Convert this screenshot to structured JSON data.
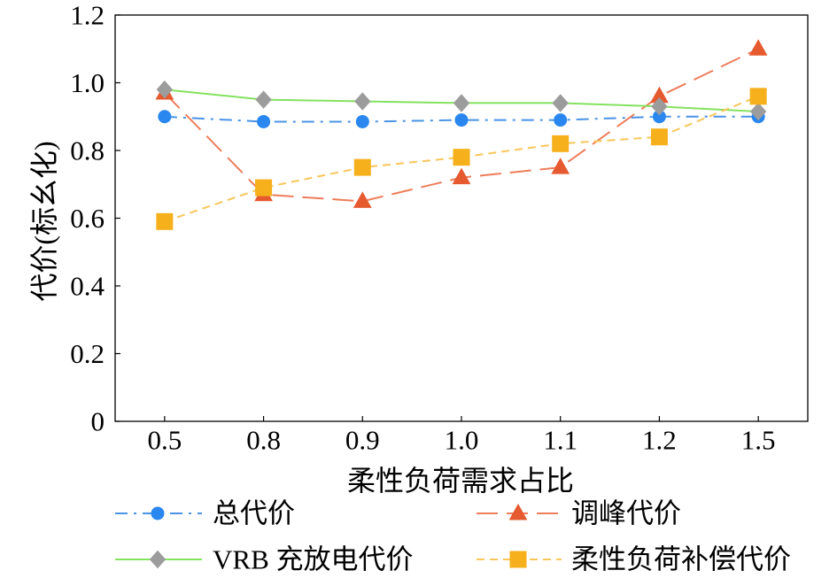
{
  "chart_data": {
    "type": "line",
    "categories": [
      "0.5",
      "0.8",
      "0.9",
      "1.0",
      "1.1",
      "1.2",
      "1.5"
    ],
    "xlabel": "柔性负荷需求占比",
    "ylabel": "代价(标幺化)",
    "ylim": [
      0,
      1.2
    ],
    "ytick_labels": [
      "0",
      "0.2",
      "0.4",
      "0.6",
      "0.8",
      "1.0",
      "1.2"
    ],
    "grid": false,
    "legend": "bottom",
    "series": [
      {
        "name": "总代价",
        "values": [
          0.9,
          0.885,
          0.885,
          0.89,
          0.89,
          0.9,
          0.9
        ],
        "line_color": "#4a93e6",
        "marker_color": "#2a87f0",
        "marker": "circle",
        "line_style": "dash-dot"
      },
      {
        "name": "调峰代价",
        "values": [
          0.97,
          0.67,
          0.65,
          0.72,
          0.75,
          0.96,
          1.1
        ],
        "line_color": "#ee7d5b",
        "marker_color": "#e65a30",
        "marker": "triangle",
        "line_style": "long-dash"
      },
      {
        "name": "VRB 充放电代价",
        "values": [
          0.98,
          0.95,
          0.945,
          0.94,
          0.94,
          0.93,
          0.915
        ],
        "line_color": "#84e25e",
        "marker_color": "#9c9c9c",
        "marker": "diamond",
        "line_style": "solid"
      },
      {
        "name": "柔性负荷补偿代价",
        "values": [
          0.59,
          0.69,
          0.75,
          0.78,
          0.82,
          0.84,
          0.96
        ],
        "line_color": "#f8c65a",
        "marker_color": "#f6b01c",
        "marker": "square",
        "line_style": "dashed"
      }
    ]
  }
}
